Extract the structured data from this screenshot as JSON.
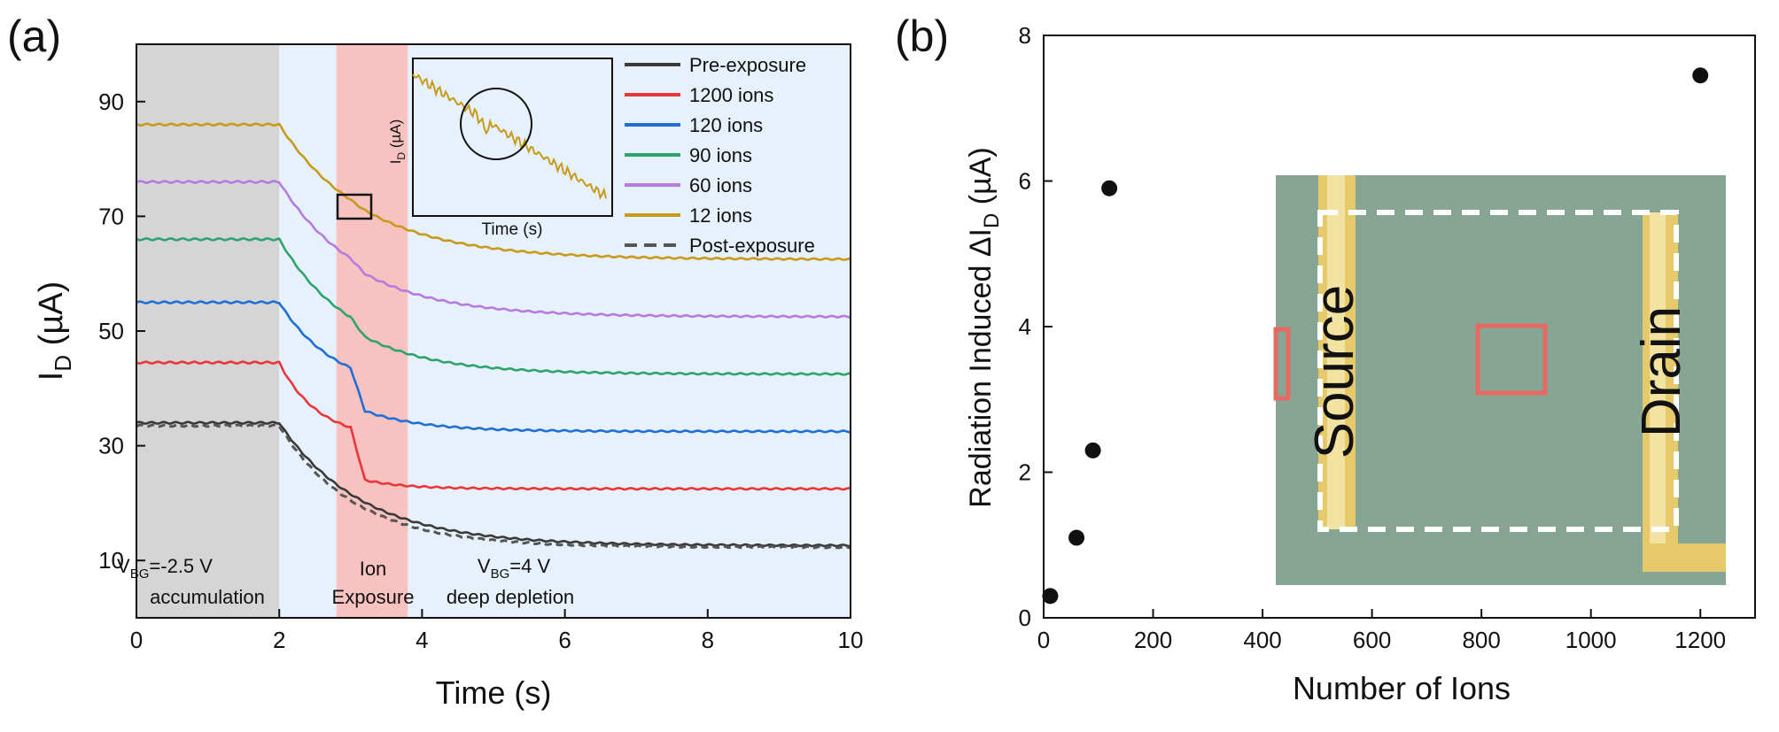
{
  "chart_data": [
    {
      "panel": "(a)",
      "type": "line",
      "xlabel": "Time (s)",
      "ylabel": "I",
      "ylabel_sub": "D",
      "ylabel_unit": " (µA)",
      "xlim": [
        0,
        10
      ],
      "ylim": [
        0,
        100
      ],
      "xticks": [
        0,
        2,
        4,
        6,
        8,
        10
      ],
      "yticks": [
        10,
        30,
        50,
        70,
        90
      ],
      "regions": [
        {
          "name": "accumulation",
          "from": 0,
          "to": 2,
          "color": "#d5d5d5"
        },
        {
          "name": "deep-depletion",
          "from": 2,
          "to": 10,
          "color": "#e6f1fb"
        },
        {
          "name": "ion-exposure",
          "from": 2.8,
          "to": 3.8,
          "color": "#f7c2c0"
        }
      ],
      "annotations": {
        "vbg_acc_pre": "V",
        "vbg_acc_sub": "BG",
        "vbg_acc_post": "=-2.5 V",
        "acc_label": "accumulation",
        "ion_line1": "Ion",
        "ion_line2": "Exposure",
        "vbg_dep_pre": "V",
        "vbg_dep_sub": "BG",
        "vbg_dep_post": "=4 V",
        "dep_label": "deep depletion"
      },
      "series": [
        {
          "name": "Pre-exposure",
          "color": "#3a3a3a",
          "dash": false,
          "start": 34,
          "end": 12.6,
          "drop": 0,
          "tau": 1.15
        },
        {
          "name": "1200 ions",
          "color": "#e8363a",
          "dash": false,
          "start": 44.5,
          "end": 22.5,
          "drop": 8.5,
          "tau": 0.55
        },
        {
          "name": "120 ions",
          "color": "#1f6fd6",
          "dash": false,
          "start": 55,
          "end": 32.5,
          "drop": 6.5,
          "tau": 0.8
        },
        {
          "name": "90 ions",
          "color": "#2ea36b",
          "dash": false,
          "start": 66,
          "end": 42.5,
          "drop": 2.0,
          "tau": 1.0
        },
        {
          "name": "60 ions",
          "color": "#b57be0",
          "dash": false,
          "start": 76,
          "end": 52.5,
          "drop": 1.2,
          "tau": 1.1
        },
        {
          "name": "12 ions",
          "color": "#c79a1c",
          "dash": false,
          "start": 86,
          "end": 62.5,
          "drop": 0.3,
          "tau": 1.2
        },
        {
          "name": "Post-exposure",
          "color": "#555555",
          "dash": true,
          "start": 33.5,
          "end": 12.3,
          "drop": 0,
          "tau": 1.05
        }
      ],
      "inset": {
        "xlabel": "Time (s)",
        "ylabel_pre": "I",
        "ylabel_sub": "D",
        "ylabel_unit": " (µA)"
      }
    },
    {
      "panel": "(b)",
      "type": "scatter",
      "xlabel": "Number of Ions",
      "ylabel_pre": "Radiation Induced ΔI",
      "ylabel_sub": "D",
      "ylabel_unit": " (µA)",
      "xlim": [
        0,
        1300
      ],
      "ylim": [
        0,
        8
      ],
      "xticks": [
        0,
        200,
        400,
        600,
        800,
        1000,
        1200
      ],
      "yticks": [
        0,
        2,
        4,
        6,
        8
      ],
      "points": [
        {
          "x": 12,
          "y": 0.3
        },
        {
          "x": 60,
          "y": 1.1
        },
        {
          "x": 90,
          "y": 2.3
        },
        {
          "x": 120,
          "y": 5.9
        },
        {
          "x": 1200,
          "y": 7.45
        }
      ],
      "image_labels": {
        "source": "Source",
        "drain": "Drain"
      }
    }
  ]
}
